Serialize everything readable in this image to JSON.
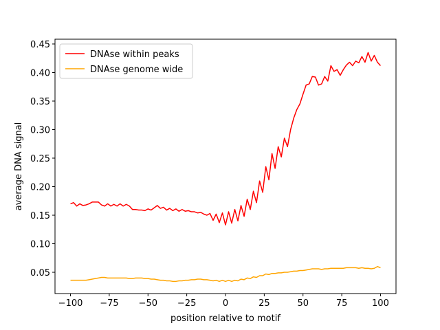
{
  "chart_data": {
    "type": "line",
    "xlabel": "position relative to motif",
    "ylabel": "average DNA signal",
    "x": [
      -100,
      -98,
      -96,
      -94,
      -92,
      -90,
      -88,
      -86,
      -84,
      -82,
      -80,
      -78,
      -76,
      -74,
      -72,
      -70,
      -68,
      -66,
      -64,
      -62,
      -60,
      -58,
      -56,
      -54,
      -52,
      -50,
      -48,
      -46,
      -44,
      -42,
      -40,
      -38,
      -36,
      -34,
      -32,
      -30,
      -28,
      -26,
      -24,
      -22,
      -20,
      -18,
      -16,
      -14,
      -12,
      -10,
      -8,
      -6,
      -4,
      -2,
      0,
      2,
      4,
      6,
      8,
      10,
      12,
      14,
      16,
      18,
      20,
      22,
      24,
      26,
      28,
      30,
      32,
      34,
      36,
      38,
      40,
      42,
      44,
      46,
      48,
      50,
      52,
      54,
      56,
      58,
      60,
      62,
      64,
      66,
      68,
      70,
      72,
      74,
      76,
      78,
      80,
      82,
      84,
      86,
      88,
      90,
      92,
      94,
      96,
      98,
      100
    ],
    "series": [
      {
        "name": "DNAse within peaks",
        "color": "#ff0000",
        "values": [
          0.17,
          0.172,
          0.166,
          0.17,
          0.167,
          0.168,
          0.17,
          0.173,
          0.173,
          0.173,
          0.168,
          0.166,
          0.17,
          0.166,
          0.169,
          0.166,
          0.17,
          0.166,
          0.169,
          0.166,
          0.16,
          0.16,
          0.159,
          0.159,
          0.158,
          0.161,
          0.159,
          0.163,
          0.167,
          0.162,
          0.164,
          0.159,
          0.162,
          0.158,
          0.161,
          0.157,
          0.16,
          0.157,
          0.158,
          0.156,
          0.156,
          0.154,
          0.155,
          0.152,
          0.15,
          0.153,
          0.141,
          0.152,
          0.137,
          0.154,
          0.133,
          0.156,
          0.136,
          0.16,
          0.14,
          0.167,
          0.148,
          0.178,
          0.16,
          0.192,
          0.172,
          0.21,
          0.19,
          0.235,
          0.212,
          0.258,
          0.232,
          0.27,
          0.252,
          0.285,
          0.27,
          0.3,
          0.32,
          0.335,
          0.345,
          0.362,
          0.378,
          0.38,
          0.393,
          0.392,
          0.378,
          0.38,
          0.393,
          0.385,
          0.412,
          0.402,
          0.405,
          0.395,
          0.405,
          0.413,
          0.418,
          0.412,
          0.42,
          0.417,
          0.428,
          0.418,
          0.435,
          0.42,
          0.43,
          0.418,
          0.412
        ]
      },
      {
        "name": "DNAse genome wide",
        "color": "#ffa500",
        "values": [
          0.036,
          0.036,
          0.036,
          0.036,
          0.036,
          0.036,
          0.037,
          0.038,
          0.039,
          0.04,
          0.041,
          0.041,
          0.04,
          0.04,
          0.04,
          0.04,
          0.04,
          0.04,
          0.04,
          0.039,
          0.039,
          0.04,
          0.04,
          0.04,
          0.039,
          0.039,
          0.038,
          0.038,
          0.037,
          0.036,
          0.036,
          0.035,
          0.035,
          0.034,
          0.034,
          0.035,
          0.035,
          0.036,
          0.036,
          0.037,
          0.037,
          0.038,
          0.038,
          0.037,
          0.037,
          0.036,
          0.035,
          0.036,
          0.034,
          0.036,
          0.034,
          0.036,
          0.034,
          0.036,
          0.035,
          0.038,
          0.037,
          0.04,
          0.039,
          0.042,
          0.041,
          0.044,
          0.044,
          0.047,
          0.046,
          0.048,
          0.048,
          0.049,
          0.049,
          0.05,
          0.05,
          0.051,
          0.052,
          0.052,
          0.053,
          0.053,
          0.054,
          0.055,
          0.056,
          0.056,
          0.056,
          0.055,
          0.056,
          0.056,
          0.057,
          0.057,
          0.057,
          0.057,
          0.057,
          0.058,
          0.058,
          0.058,
          0.058,
          0.057,
          0.058,
          0.057,
          0.057,
          0.056,
          0.057,
          0.06,
          0.058
        ]
      }
    ],
    "xlim": [
      -110,
      110
    ],
    "ylim": [
      0.0127,
      0.4584
    ],
    "xticks": [
      {
        "value": -100,
        "label": "−100"
      },
      {
        "value": -75,
        "label": "−75"
      },
      {
        "value": -50,
        "label": "−50"
      },
      {
        "value": -25,
        "label": "−25"
      },
      0,
      25,
      50,
      75,
      100
    ],
    "yticks": [
      0.05,
      {
        "value": 0.1,
        "label": "0.10"
      },
      0.15,
      {
        "value": 0.2,
        "label": "0.20"
      },
      0.25,
      {
        "value": 0.3,
        "label": "0.30"
      },
      0.35,
      {
        "value": 0.4,
        "label": "0.40"
      },
      0.45
    ],
    "legend": "upper left"
  }
}
